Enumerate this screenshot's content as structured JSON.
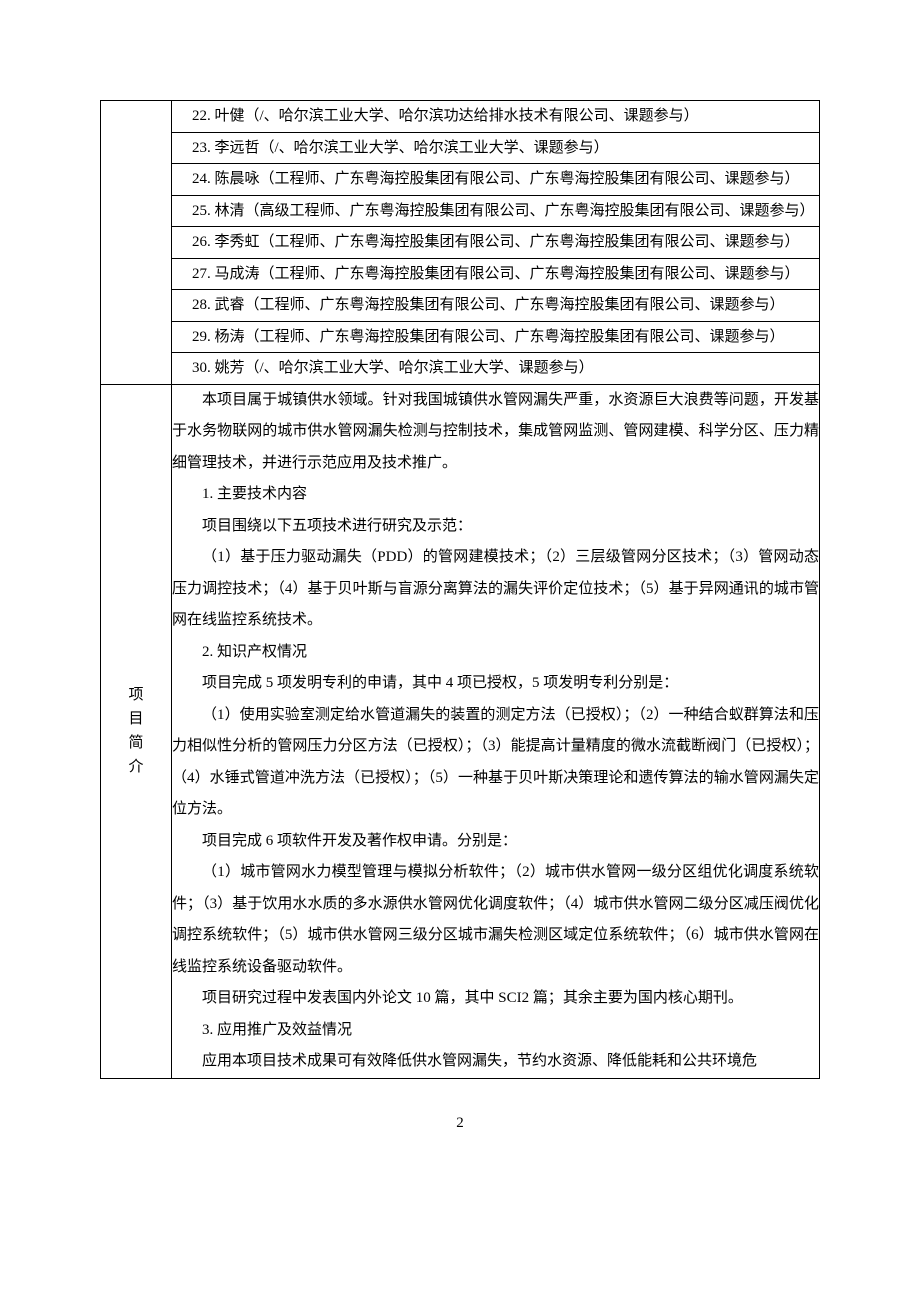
{
  "persons_header_spacer": "",
  "persons": [
    "22. 叶健（/、哈尔滨工业大学、哈尔滨功达给排水技术有限公司、课题参与）",
    "23. 李远哲（/、哈尔滨工业大学、哈尔滨工业大学、课题参与）",
    "24. 陈晨咏（工程师、广东粤海控股集团有限公司、广东粤海控股集团有限公司、课题参与）",
    "25. 林清（高级工程师、广东粤海控股集团有限公司、广东粤海控股集团有限公司、课题参与）",
    "26. 李秀虹（工程师、广东粤海控股集团有限公司、广东粤海控股集团有限公司、课题参与）",
    "27. 马成涛（工程师、广东粤海控股集团有限公司、广东粤海控股集团有限公司、课题参与）",
    "28. 武睿（工程师、广东粤海控股集团有限公司、广东粤海控股集团有限公司、课题参与）",
    "29. 杨涛（工程师、广东粤海控股集团有限公司、广东粤海控股集团有限公司、课题参与）",
    "30.  姚芳（/、哈尔滨工业大学、哈尔滨工业大学、课题参与）"
  ],
  "summary_header_c1": "项",
  "summary_header_c2": "目",
  "summary_header_c3": "简",
  "summary_header_c4": "介",
  "summary_paragraphs": [
    "本项目属于城镇供水领域。针对我国城镇供水管网漏失严重，水资源巨大浪费等问题，开发基于水务物联网的城市供水管网漏失检测与控制技术，集成管网监测、管网建模、科学分区、压力精细管理技术，并进行示范应用及技术推广。",
    "1. 主要技术内容",
    "项目围绕以下五项技术进行研究及示范：",
    "（1）基于压力驱动漏失（PDD）的管网建模技术；（2）三层级管网分区技术；（3）管网动态压力调控技术；（4）基于贝叶斯与盲源分离算法的漏失评价定位技术；（5）基于异网通讯的城市管网在线监控系统技术。",
    "2. 知识产权情况",
    "项目完成 5 项发明专利的申请，其中 4 项已授权，5 项发明专利分别是：",
    "（1）使用实验室测定给水管道漏失的装置的测定方法（已授权）；（2）一种结合蚁群算法和压力相似性分析的管网压力分区方法（已授权）；（3）能提高计量精度的微水流截断阀门（已授权）；（4）水锤式管道冲洗方法（已授权）；（5）一种基于贝叶斯决策理论和遗传算法的输水管网漏失定位方法。",
    "项目完成 6 项软件开发及著作权申请。分别是：",
    "（1）城市管网水力模型管理与模拟分析软件；（2）城市供水管网一级分区组优化调度系统软件；（3）基于饮用水水质的多水源供水管网优化调度软件；（4）城市供水管网二级分区减压阀优化调控系统软件；（5）城市供水管网三级分区城市漏失检测区域定位系统软件；（6）城市供水管网在线监控系统设备驱动软件。",
    "项目研究过程中发表国内外论文 10 篇，其中 SCI2 篇；其余主要为国内核心期刊。",
    "3. 应用推广及效益情况",
    "应用本项目技术成果可有效降低供水管网漏失，节约水资源、降低能耗和公共环境危"
  ],
  "page_number": "2"
}
